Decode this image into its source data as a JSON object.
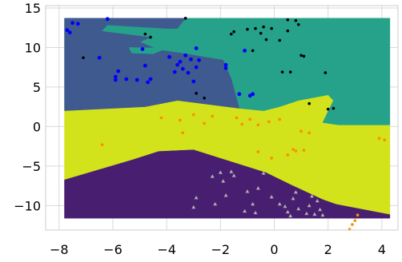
{
  "chart_data": {
    "type": "scatter",
    "title": "",
    "xlabel": "",
    "ylabel": "",
    "xlim": [
      -8.5,
      4.6
    ],
    "ylim": [
      -13.1,
      15.3
    ],
    "grid": true,
    "x_ticks": [
      -8,
      -6,
      -4,
      -2,
      0,
      2,
      4
    ],
    "y_ticks": [
      -10,
      -5,
      0,
      5,
      10,
      15
    ],
    "x_tick_labels": [
      "−8",
      "−6",
      "−4",
      "−2",
      "0",
      "2",
      "4"
    ],
    "y_tick_labels": [
      "−10",
      "−5",
      "0",
      "5",
      "10",
      "15"
    ],
    "regions_extent": {
      "x": [
        -7.8,
        4.3
      ],
      "y": [
        -11.6,
        13.7
      ]
    },
    "regions": [
      {
        "name": "class-purple",
        "color": "#481f70",
        "polygon": [
          [
            -7.8,
            -11.6
          ],
          [
            4.3,
            -11.6
          ],
          [
            4.3,
            -11.1
          ],
          [
            2.3,
            -9.8
          ],
          [
            1.8,
            -9.2
          ],
          [
            0.6,
            -7.3
          ],
          [
            -0.3,
            -5.8
          ],
          [
            -1.8,
            -4.2
          ],
          [
            -3.0,
            -2.9
          ],
          [
            -4.3,
            -3.1
          ],
          [
            -5.3,
            -4.2
          ],
          [
            -7.8,
            -6.7
          ]
        ]
      },
      {
        "name": "class-yellow",
        "color": "#d2e21b",
        "polygon": [
          [
            -7.8,
            2.0
          ],
          [
            -4.8,
            2.5
          ],
          [
            -3.6,
            3.3
          ],
          [
            -1.3,
            2.3
          ],
          [
            -0.4,
            2.0
          ],
          [
            0.2,
            2.5
          ],
          [
            0.9,
            3.3
          ],
          [
            2.0,
            4.0
          ],
          [
            2.2,
            3.3
          ],
          [
            1.8,
            0.5
          ],
          [
            2.4,
            0.2
          ],
          [
            4.3,
            0.2
          ],
          [
            4.3,
            -11.1
          ],
          [
            2.3,
            -9.8
          ],
          [
            1.8,
            -9.2
          ],
          [
            0.6,
            -7.3
          ],
          [
            -0.3,
            -5.8
          ],
          [
            -1.8,
            -4.2
          ],
          [
            -3.0,
            -2.9
          ],
          [
            -4.3,
            -3.1
          ],
          [
            -5.3,
            -4.2
          ],
          [
            -7.8,
            -6.7
          ]
        ]
      },
      {
        "name": "class-teal",
        "color": "#26a28a",
        "polygon": [
          [
            -3.3,
            13.7
          ],
          [
            4.3,
            13.7
          ],
          [
            4.3,
            0.2
          ],
          [
            2.4,
            0.2
          ],
          [
            1.8,
            0.5
          ],
          [
            2.2,
            3.3
          ],
          [
            2.0,
            4.0
          ],
          [
            0.9,
            3.3
          ],
          [
            0.2,
            2.5
          ],
          [
            -0.4,
            2.0
          ],
          [
            -1.3,
            2.3
          ],
          [
            -1.6,
            6.0
          ],
          [
            -1.9,
            8.4
          ],
          [
            -3.3,
            9.2
          ],
          [
            -4.3,
            9.7
          ],
          [
            -5.0,
            10.7
          ],
          [
            -4.4,
            11.6
          ],
          [
            -3.9,
            12.4
          ],
          [
            -3.6,
            12.4
          ]
        ]
      },
      {
        "name": "class-blue",
        "color": "#3e5a8e",
        "polygon": [
          [
            -7.8,
            13.7
          ],
          [
            -3.3,
            13.7
          ],
          [
            -3.6,
            12.4
          ],
          [
            -3.9,
            12.4
          ],
          [
            -4.4,
            11.6
          ],
          [
            -5.0,
            10.7
          ],
          [
            -4.3,
            9.7
          ],
          [
            -3.3,
            9.2
          ],
          [
            -1.9,
            8.4
          ],
          [
            -1.6,
            6.0
          ],
          [
            -1.3,
            2.3
          ],
          [
            -3.6,
            3.3
          ],
          [
            -4.8,
            2.5
          ],
          [
            -7.8,
            2.0
          ]
        ]
      },
      {
        "name": "class-teal-patch",
        "color": "#26a28a",
        "polygon": [
          [
            -6.2,
            12.8
          ],
          [
            -3.7,
            12.3
          ],
          [
            -4.3,
            11.2
          ],
          [
            -6.4,
            12.1
          ]
        ]
      },
      {
        "name": "class-teal-patch-2",
        "color": "#26a28a",
        "polygon": [
          [
            -5.4,
            10.0
          ],
          [
            -4.0,
            9.9
          ],
          [
            -4.5,
            9.2
          ],
          [
            -5.3,
            9.3
          ]
        ]
      }
    ],
    "series": [
      {
        "color": "#0000ff",
        "marker": "circle",
        "points": [
          [
            -7.7,
            12.2
          ],
          [
            -7.6,
            11.9
          ],
          [
            -7.5,
            13.1
          ],
          [
            -7.3,
            13.0
          ],
          [
            -6.2,
            13.6
          ],
          [
            -6.5,
            8.7
          ],
          [
            -5.9,
            6.3
          ],
          [
            -5.8,
            7.0
          ],
          [
            -5.9,
            5.9
          ],
          [
            -5.5,
            6.0
          ],
          [
            -5.1,
            5.9
          ],
          [
            -4.9,
            9.8
          ],
          [
            -4.8,
            7.7
          ],
          [
            -4.7,
            5.6
          ],
          [
            -4.6,
            6.0
          ],
          [
            -3.9,
            8.8
          ],
          [
            -3.7,
            6.9
          ],
          [
            -3.6,
            7.8
          ],
          [
            -3.5,
            8.2
          ],
          [
            -3.4,
            7.3
          ],
          [
            -3.3,
            9.0
          ],
          [
            -3.2,
            6.8
          ],
          [
            -3.1,
            8.5
          ],
          [
            -3.0,
            5.7
          ],
          [
            -2.9,
            7.5
          ],
          [
            -2.8,
            8.4
          ],
          [
            -2.9,
            9.9
          ],
          [
            -1.8,
            7.8
          ],
          [
            -1.8,
            7.4
          ],
          [
            -1.3,
            4.1
          ],
          [
            -0.9,
            3.9
          ],
          [
            -0.8,
            4.1
          ],
          [
            -1.1,
            9.6
          ]
        ]
      },
      {
        "color": "#000000",
        "marker": "circle",
        "points": [
          [
            -7.1,
            8.7
          ],
          [
            -4.8,
            11.7
          ],
          [
            -4.6,
            11.3
          ],
          [
            -2.9,
            4.2
          ],
          [
            -2.6,
            3.6
          ],
          [
            -3.3,
            13.7
          ],
          [
            -1.6,
            11.7
          ],
          [
            -1.5,
            12.0
          ],
          [
            -1.0,
            12.3
          ],
          [
            -0.8,
            9.6
          ],
          [
            -0.7,
            12.4
          ],
          [
            -0.5,
            11.8
          ],
          [
            -0.4,
            12.6
          ],
          [
            -0.3,
            11.0
          ],
          [
            -0.1,
            12.4
          ],
          [
            0.2,
            10.9
          ],
          [
            0.3,
            6.9
          ],
          [
            0.6,
            6.9
          ],
          [
            0.5,
            13.5
          ],
          [
            0.8,
            13.4
          ],
          [
            0.9,
            12.9
          ],
          [
            0.5,
            12.1
          ],
          [
            1.0,
            9.0
          ],
          [
            1.1,
            8.9
          ],
          [
            1.3,
            2.9
          ],
          [
            1.9,
            6.8
          ],
          [
            2.0,
            2.2
          ],
          [
            2.2,
            2.3
          ]
        ]
      },
      {
        "color": "#ff8c00",
        "marker": "circle",
        "points": [
          [
            -6.4,
            -2.3
          ],
          [
            -4.2,
            1.1
          ],
          [
            -3.4,
            -0.8
          ],
          [
            -3.5,
            0.8
          ],
          [
            -3.0,
            1.5
          ],
          [
            -2.6,
            0.4
          ],
          [
            -2.3,
            1.3
          ],
          [
            -1.4,
            1.1
          ],
          [
            -1.2,
            0.3
          ],
          [
            -0.9,
            0.9
          ],
          [
            -0.6,
            0.2
          ],
          [
            -0.6,
            -3.2
          ],
          [
            -0.2,
            0.6
          ],
          [
            -0.1,
            -4.0
          ],
          [
            0.2,
            0.9
          ],
          [
            0.5,
            -3.6
          ],
          [
            0.7,
            -2.9
          ],
          [
            0.8,
            -3.1
          ],
          [
            1.0,
            -0.6
          ],
          [
            1.3,
            -0.8
          ],
          [
            1.1,
            -3.0
          ],
          [
            2.8,
            -13.0
          ],
          [
            2.9,
            -12.4
          ],
          [
            3.0,
            -11.9
          ],
          [
            3.1,
            -11.2
          ],
          [
            3.9,
            -1.5
          ],
          [
            4.1,
            -1.7
          ]
        ]
      },
      {
        "color": "#b0b0b0",
        "marker": "triangle",
        "points": [
          [
            -3.0,
            -10.2
          ],
          [
            -2.9,
            -9.0
          ],
          [
            -2.3,
            -6.3
          ],
          [
            -2.0,
            -5.8
          ],
          [
            -1.9,
            -6.9
          ],
          [
            -2.2,
            -9.8
          ],
          [
            -1.8,
            -8.7
          ],
          [
            -1.6,
            -5.7
          ],
          [
            -1.5,
            -6.2
          ],
          [
            -1.0,
            -8.2
          ],
          [
            -1.1,
            -10.7
          ],
          [
            -0.8,
            -9.8
          ],
          [
            -0.7,
            -10.9
          ],
          [
            -0.6,
            -7.8
          ],
          [
            -0.4,
            -5.9
          ],
          [
            -0.1,
            -8.9
          ],
          [
            0.2,
            -9.8
          ],
          [
            0.4,
            -10.1
          ],
          [
            0.5,
            -10.8
          ],
          [
            0.6,
            -11.3
          ],
          [
            0.7,
            -9.1
          ],
          [
            0.8,
            -8.3
          ],
          [
            0.9,
            -10.4
          ],
          [
            1.2,
            -11.0
          ],
          [
            1.3,
            -10.0
          ],
          [
            1.5,
            -11.1
          ],
          [
            1.7,
            -10.5
          ],
          [
            1.8,
            -11.2
          ],
          [
            1.4,
            -8.8
          ],
          [
            1.6,
            -9.4
          ]
        ]
      }
    ]
  }
}
